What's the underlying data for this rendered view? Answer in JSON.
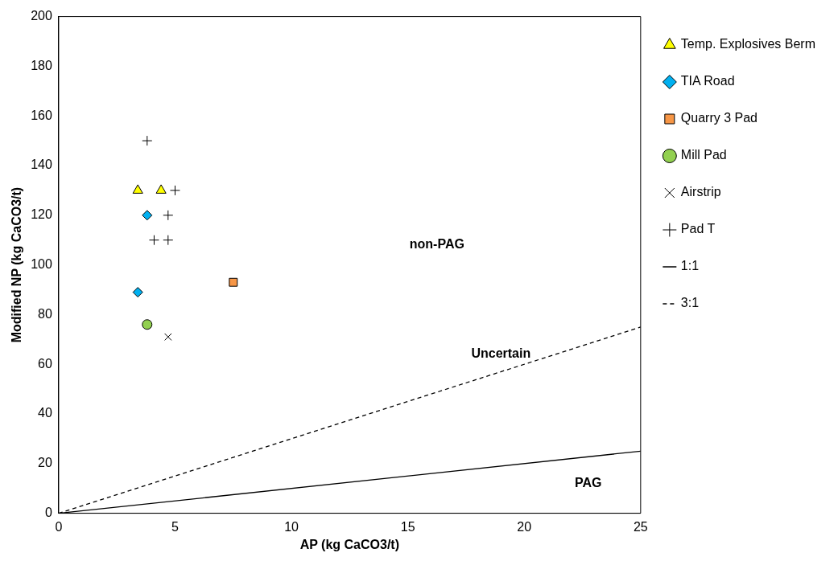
{
  "chart_data": {
    "type": "scatter",
    "xlabel": "AP (kg CaCO3/t)",
    "ylabel": "Modified NP (kg CaCO3/t)",
    "xlim": [
      0,
      25
    ],
    "xticks": [
      0,
      5,
      10,
      15,
      20,
      25
    ],
    "ylim": [
      0,
      200
    ],
    "yticks": [
      0,
      20,
      40,
      60,
      80,
      100,
      120,
      140,
      160,
      180,
      200
    ],
    "grid": false,
    "legend": "right",
    "series": [
      {
        "name": "Temp. Explosives Berm",
        "color": "#ffff00",
        "marker": "triangle",
        "x": [
          3.4,
          4.4
        ],
        "values": [
          130,
          130
        ]
      },
      {
        "name": "TIA Road",
        "color": "#00b0f0",
        "marker": "diamond",
        "x": [
          3.8,
          3.4
        ],
        "values": [
          120,
          89
        ]
      },
      {
        "name": "Quarry 3 Pad",
        "color": "#f79646",
        "marker": "square",
        "x": [
          7.5
        ],
        "values": [
          93
        ]
      },
      {
        "name": "Mill Pad",
        "color": "#92d050",
        "marker": "circle",
        "x": [
          3.8
        ],
        "values": [
          76
        ]
      },
      {
        "name": "Airstrip",
        "color": "#000000",
        "marker": "x",
        "x": [
          4.7
        ],
        "values": [
          71
        ]
      },
      {
        "name": "Pad T",
        "color": "#000000",
        "marker": "cross",
        "x": [
          3.8,
          5.0,
          4.7,
          4.1,
          4.7
        ],
        "values": [
          150,
          130,
          120,
          110,
          110
        ]
      },
      {
        "name": "1:1",
        "type": "line",
        "color": "#000000",
        "marker": "none",
        "line_style": "solid",
        "x": [
          0,
          25
        ],
        "values": [
          0,
          25
        ]
      },
      {
        "name": "3:1",
        "type": "line",
        "color": "#000000",
        "marker": "none",
        "line_style": "dashed",
        "x": [
          0,
          25
        ],
        "values": [
          0,
          75
        ]
      }
    ],
    "annotations": [
      "non-PAG",
      "Uncertain",
      "PAG"
    ]
  }
}
